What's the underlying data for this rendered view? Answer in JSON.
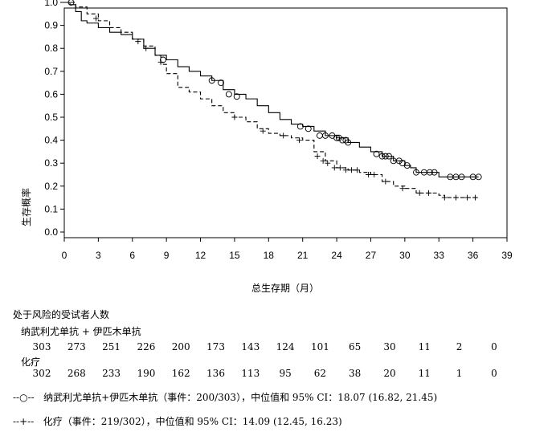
{
  "chart_data": {
    "type": "line",
    "ylabel": "生存概率",
    "xlabel": "总生存期（月）",
    "xlim": [
      0,
      39
    ],
    "ylim": [
      0,
      1.0
    ],
    "x_ticks": [
      "0",
      "3",
      "6",
      "9",
      "12",
      "15",
      "18",
      "21",
      "24",
      "27",
      "30",
      "33",
      "36",
      "39"
    ],
    "y_ticks": [
      "0.0",
      "0.1",
      "0.2",
      "0.3",
      "0.4",
      "0.5",
      "0.6",
      "0.7",
      "0.8",
      "0.9",
      "1.0"
    ],
    "grid": false,
    "series": [
      {
        "line_style": "solid",
        "censor_marker": "circle",
        "color": "#000000",
        "points": [
          [
            0,
            1.0
          ],
          [
            0.5,
            0.99
          ],
          [
            1,
            0.96
          ],
          [
            1.5,
            0.92
          ],
          [
            2,
            0.91
          ],
          [
            3,
            0.89
          ],
          [
            4,
            0.87
          ],
          [
            5,
            0.86
          ],
          [
            6,
            0.84
          ],
          [
            7,
            0.8
          ],
          [
            8,
            0.77
          ],
          [
            9,
            0.75
          ],
          [
            10,
            0.72
          ],
          [
            11,
            0.7
          ],
          [
            12,
            0.68
          ],
          [
            13,
            0.66
          ],
          [
            14,
            0.62
          ],
          [
            15,
            0.6
          ],
          [
            16,
            0.58
          ],
          [
            17,
            0.55
          ],
          [
            18,
            0.52
          ],
          [
            19,
            0.49
          ],
          [
            20,
            0.47
          ],
          [
            21,
            0.46
          ],
          [
            22,
            0.44
          ],
          [
            23,
            0.42
          ],
          [
            24,
            0.41
          ],
          [
            25,
            0.39
          ],
          [
            26,
            0.37
          ],
          [
            27,
            0.35
          ],
          [
            28,
            0.33
          ],
          [
            29,
            0.31
          ],
          [
            30,
            0.29
          ],
          [
            30.5,
            0.28
          ],
          [
            31,
            0.26
          ],
          [
            32,
            0.26
          ],
          [
            33,
            0.26
          ],
          [
            33,
            0.24
          ],
          [
            36.5,
            0.24
          ]
        ],
        "censored": [
          [
            0.6,
            1.0
          ],
          [
            8.7,
            0.75
          ],
          [
            13,
            0.66
          ],
          [
            13.8,
            0.65
          ],
          [
            14.5,
            0.6
          ],
          [
            15.2,
            0.59
          ],
          [
            20.8,
            0.46
          ],
          [
            21.5,
            0.45
          ],
          [
            22.5,
            0.42
          ],
          [
            23,
            0.42
          ],
          [
            23.6,
            0.42
          ],
          [
            24,
            0.41
          ],
          [
            24.2,
            0.41
          ],
          [
            24.5,
            0.4
          ],
          [
            24.8,
            0.4
          ],
          [
            25,
            0.39
          ],
          [
            27.5,
            0.34
          ],
          [
            28,
            0.33
          ],
          [
            28.3,
            0.33
          ],
          [
            28.6,
            0.33
          ],
          [
            29,
            0.31
          ],
          [
            29.5,
            0.31
          ],
          [
            29.8,
            0.3
          ],
          [
            30.2,
            0.29
          ],
          [
            31,
            0.26
          ],
          [
            31.7,
            0.26
          ],
          [
            32.2,
            0.26
          ],
          [
            32.6,
            0.26
          ],
          [
            34,
            0.24
          ],
          [
            34.5,
            0.24
          ],
          [
            35,
            0.24
          ],
          [
            36,
            0.24
          ],
          [
            36.5,
            0.24
          ]
        ]
      },
      {
        "line_style": "dashed",
        "censor_marker": "plus",
        "color": "#000000",
        "points": [
          [
            0,
            1.0
          ],
          [
            1,
            0.98
          ],
          [
            2,
            0.95
          ],
          [
            3,
            0.92
          ],
          [
            4,
            0.89
          ],
          [
            5,
            0.87
          ],
          [
            6,
            0.84
          ],
          [
            7,
            0.81
          ],
          [
            8,
            0.77
          ],
          [
            8.5,
            0.73
          ],
          [
            9,
            0.69
          ],
          [
            10,
            0.63
          ],
          [
            11,
            0.61
          ],
          [
            12,
            0.58
          ],
          [
            13,
            0.55
          ],
          [
            14,
            0.52
          ],
          [
            15,
            0.5
          ],
          [
            16,
            0.48
          ],
          [
            17,
            0.45
          ],
          [
            18,
            0.43
          ],
          [
            19,
            0.42
          ],
          [
            20,
            0.41
          ],
          [
            21,
            0.4
          ],
          [
            22,
            0.35
          ],
          [
            23,
            0.31
          ],
          [
            24,
            0.28
          ],
          [
            25,
            0.27
          ],
          [
            26,
            0.26
          ],
          [
            27,
            0.25
          ],
          [
            28,
            0.22
          ],
          [
            29,
            0.2
          ],
          [
            30,
            0.19
          ],
          [
            31,
            0.17
          ],
          [
            32,
            0.17
          ],
          [
            33,
            0.16
          ],
          [
            33.5,
            0.15
          ],
          [
            36.5,
            0.15
          ]
        ],
        "censored": [
          [
            2.8,
            0.93
          ],
          [
            6.5,
            0.83
          ],
          [
            7.2,
            0.8
          ],
          [
            8.5,
            0.74
          ],
          [
            15,
            0.5
          ],
          [
            17.5,
            0.44
          ],
          [
            19.3,
            0.42
          ],
          [
            20.7,
            0.4
          ],
          [
            22.3,
            0.33
          ],
          [
            22.8,
            0.31
          ],
          [
            23.2,
            0.3
          ],
          [
            23.8,
            0.28
          ],
          [
            24.3,
            0.28
          ],
          [
            24.8,
            0.27
          ],
          [
            25.3,
            0.27
          ],
          [
            25.8,
            0.27
          ],
          [
            26.8,
            0.25
          ],
          [
            27.3,
            0.25
          ],
          [
            28.3,
            0.22
          ],
          [
            29.8,
            0.19
          ],
          [
            31.3,
            0.17
          ],
          [
            32.1,
            0.17
          ],
          [
            33.5,
            0.15
          ],
          [
            34.5,
            0.15
          ],
          [
            35.5,
            0.15
          ],
          [
            36.2,
            0.15
          ]
        ]
      }
    ]
  },
  "risk_table": {
    "title": "处于风险的受试者人数",
    "groups": [
      {
        "name": "纳武利尤单抗 + 伊匹木单抗",
        "counts": [
          "303",
          "273",
          "251",
          "226",
          "200",
          "173",
          "143",
          "124",
          "101",
          "65",
          "30",
          "11",
          "2",
          "0"
        ]
      },
      {
        "name": "化疗",
        "counts": [
          "302",
          "268",
          "233",
          "190",
          "162",
          "136",
          "113",
          "95",
          "62",
          "38",
          "20",
          "11",
          "1",
          "0"
        ]
      }
    ]
  },
  "legend": [
    {
      "symbol": "--○--",
      "text": "纳武利尤单抗+伊匹木单抗（事件：200/303），中位值和 95% CI：18.07 (16.82, 21.45)"
    },
    {
      "symbol": "--+--",
      "text": "化疗（事件：219/302），中位值和 95% CI：14.09 (12.45, 16.23)"
    }
  ]
}
